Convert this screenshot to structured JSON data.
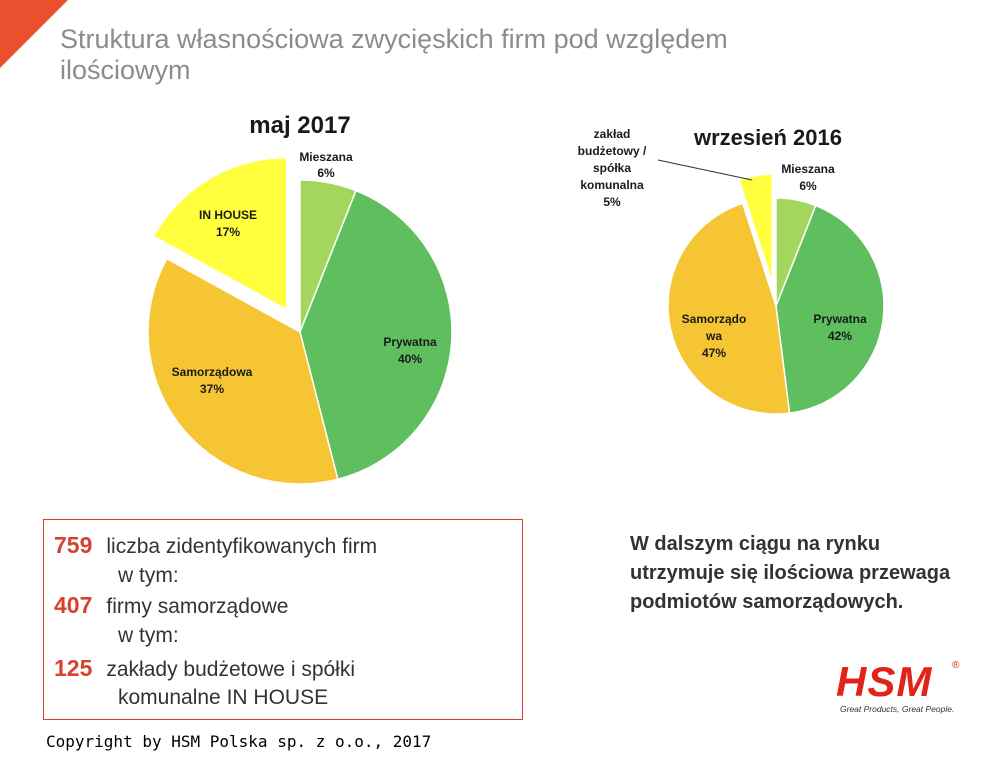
{
  "slide_title": "Struktura własnościowa zwycięskich firm pod względem ilościowym",
  "chart_data": [
    {
      "type": "pie",
      "title": "maj 2017",
      "slices": [
        {
          "label": "Mieszana",
          "value": 6,
          "color": "#a3d65c"
        },
        {
          "label": "Prywatna",
          "value": 40,
          "color": "#5fbf5f"
        },
        {
          "label": "Samorządowa",
          "value": 37,
          "color": "#f5c533"
        },
        {
          "label": "IN HOUSE",
          "value": 17,
          "color": "#ffff3d"
        }
      ]
    },
    {
      "type": "pie",
      "title": "wrzesień 2016",
      "slices": [
        {
          "label": "Mieszana",
          "value": 6,
          "color": "#a3d65c"
        },
        {
          "label": "Prywatna",
          "value": 42,
          "color": "#5fbf5f"
        },
        {
          "label": "Samorządo wa",
          "value": 47,
          "color": "#f5c533"
        },
        {
          "label": "zakład budżetowy / spółka komunalna",
          "value": 5,
          "color": "#ffff3d"
        }
      ]
    }
  ],
  "stats": {
    "row1_num": "759",
    "row1_text": "liczba zidentyfikowanych firm",
    "row1_sub": "w tym:",
    "row2_num": "407",
    "row2_text": "firmy samorządowe",
    "row2_sub": "w tym:",
    "row3_num": "125",
    "row3_text": "zakłady budżetowe i spółki",
    "row3_sub": "komunalne IN HOUSE"
  },
  "conclusion": "W dalszym ciągu na rynku utrzymuje się ilościowa przewaga podmiotów samorządowych.",
  "logo": {
    "text": "HSM",
    "reg": "®",
    "tagline": "Great Products, Great People."
  },
  "copyright": "Copyright by HSM Polska sp. z o.o., 2017",
  "colors": {
    "accent": "#e2231a",
    "corner": "#e8502e"
  }
}
